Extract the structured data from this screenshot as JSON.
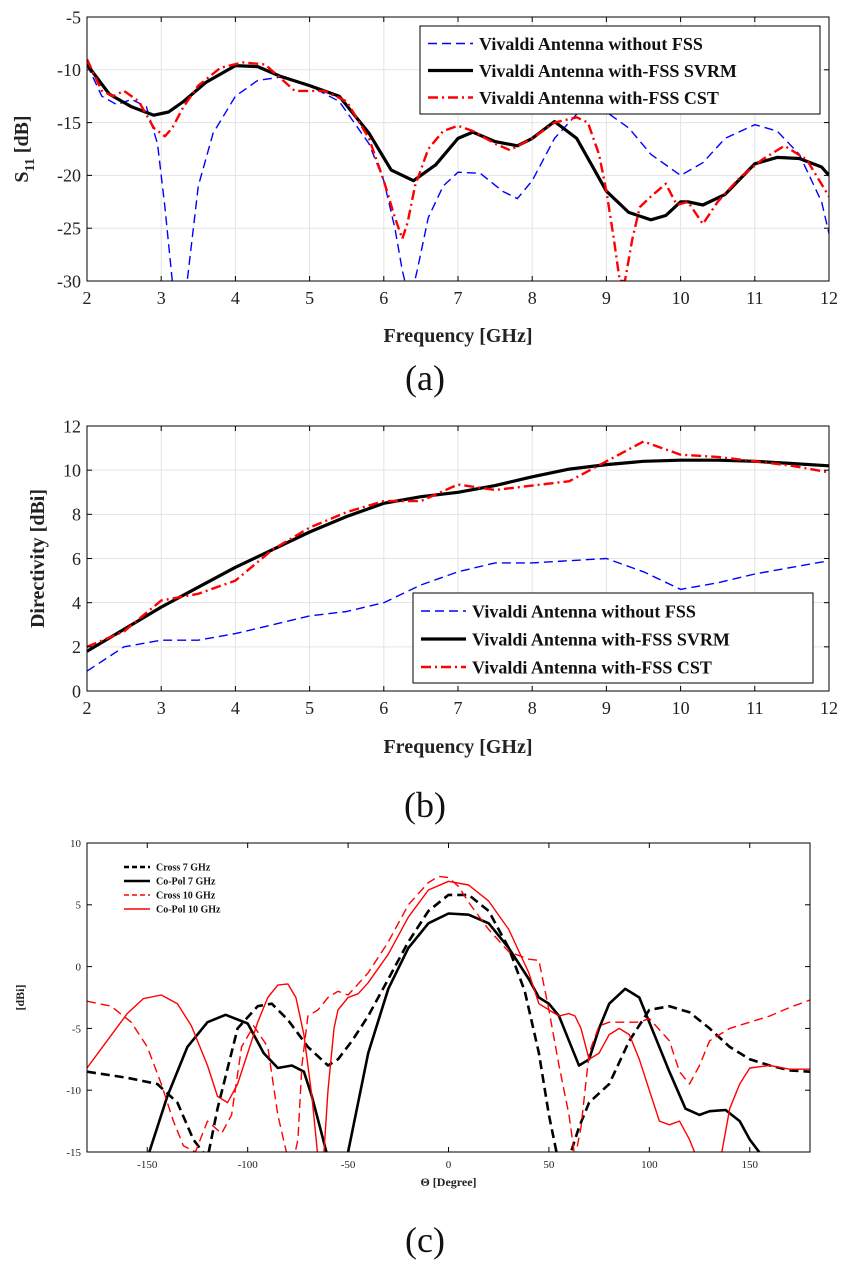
{
  "colors": {
    "blue": "#0000ff",
    "black": "#000000",
    "red": "#ff0000",
    "grid": "#e3e3e3"
  },
  "chart_data": [
    {
      "panel": "a",
      "type": "line",
      "caption": "(a)",
      "xlabel": "Frequency [GHz]",
      "ylabel_main": "S",
      "ylabel_sub": "11",
      "ylabel_unit": " [dB]",
      "xlim": [
        2,
        12
      ],
      "ylim": [
        -30,
        -5
      ],
      "xticks": [
        2,
        3,
        4,
        5,
        6,
        7,
        8,
        9,
        10,
        11,
        12
      ],
      "yticks": [
        -30,
        -25,
        -20,
        -15,
        -10,
        -5
      ],
      "grid": true,
      "legend_position": "top-right",
      "series": [
        {
          "name": "Vivaldi Antenna without FSS",
          "color": "#0000ff",
          "style": "dashed",
          "width": 1.4,
          "x": [
            2,
            2.2,
            2.4,
            2.6,
            2.8,
            2.95,
            3.05,
            3.15,
            3.25,
            3.35,
            3.5,
            3.7,
            4.0,
            4.3,
            4.6,
            5.0,
            5.4,
            5.8,
            6.0,
            6.15,
            6.25,
            6.35,
            6.45,
            6.6,
            6.8,
            7.0,
            7.3,
            7.6,
            7.8,
            8.0,
            8.3,
            8.6,
            9.0,
            9.3,
            9.6,
            10.0,
            10.3,
            10.6,
            11.0,
            11.3,
            11.6,
            11.9,
            12
          ],
          "y": [
            -9.5,
            -12.5,
            -13.3,
            -12.8,
            -13.5,
            -17,
            -23,
            -30,
            -32,
            -30,
            -21,
            -16,
            -12.5,
            -11.0,
            -10.7,
            -11.5,
            -13.0,
            -17.0,
            -20.5,
            -25,
            -29,
            -32,
            -29,
            -24,
            -21,
            -19.7,
            -19.8,
            -21.5,
            -22.2,
            -20.5,
            -16.5,
            -14.2,
            -14.0,
            -15.5,
            -18.0,
            -20.0,
            -18.8,
            -16.5,
            -15.2,
            -15.8,
            -18.0,
            -22.5,
            -25.5
          ]
        },
        {
          "name": "Vivaldi Antenna with-FSS SVRM",
          "color": "#000000",
          "style": "solid",
          "width": 3.2,
          "x": [
            2,
            2.3,
            2.6,
            2.9,
            3.1,
            3.3,
            3.6,
            4.0,
            4.3,
            4.6,
            5.0,
            5.4,
            5.8,
            6.1,
            6.4,
            6.7,
            7.0,
            7.2,
            7.5,
            7.8,
            8.0,
            8.3,
            8.6,
            9.0,
            9.3,
            9.6,
            9.8,
            10.0,
            10.1,
            10.3,
            10.6,
            11.0,
            11.3,
            11.6,
            11.9,
            12
          ],
          "y": [
            -9.5,
            -12.3,
            -13.5,
            -14.3,
            -14.0,
            -13.0,
            -11.2,
            -9.6,
            -9.7,
            -10.6,
            -11.5,
            -12.5,
            -16.0,
            -19.5,
            -20.5,
            -19.0,
            -16.5,
            -15.9,
            -16.8,
            -17.2,
            -16.5,
            -14.9,
            -16.5,
            -21.5,
            -23.5,
            -24.2,
            -23.8,
            -22.5,
            -22.5,
            -22.8,
            -21.8,
            -18.9,
            -18.3,
            -18.4,
            -19.2,
            -20.0
          ]
        },
        {
          "name": "Vivaldi Antenna with-FSS CST",
          "color": "#ff0000",
          "style": "dashdot",
          "width": 2.4,
          "x": [
            2,
            2.2,
            2.35,
            2.5,
            2.7,
            2.9,
            3.05,
            3.15,
            3.3,
            3.5,
            3.8,
            4.1,
            4.4,
            4.8,
            5.2,
            5.5,
            5.8,
            6.0,
            6.15,
            6.25,
            6.32,
            6.42,
            6.6,
            6.8,
            7.0,
            7.2,
            7.5,
            7.7,
            8.0,
            8.3,
            8.6,
            8.75,
            8.9,
            9.0,
            9.1,
            9.18,
            9.25,
            9.35,
            9.45,
            9.6,
            9.8,
            9.95,
            10.1,
            10.3,
            10.5,
            10.8,
            11.1,
            11.4,
            11.7,
            12
          ],
          "y": [
            -9.0,
            -12.0,
            -12.5,
            -12.0,
            -13.0,
            -15.5,
            -16.3,
            -15.5,
            -13.5,
            -11.5,
            -9.8,
            -9.3,
            -9.5,
            -12.0,
            -12.0,
            -13.0,
            -16.5,
            -20.5,
            -24.0,
            -26.0,
            -24.5,
            -21.0,
            -17.5,
            -15.8,
            -15.3,
            -15.8,
            -17.0,
            -17.6,
            -16.5,
            -15.0,
            -14.5,
            -15.0,
            -18.0,
            -21.5,
            -26.0,
            -30.0,
            -30.0,
            -26.0,
            -23.0,
            -22.0,
            -20.8,
            -22.8,
            -22.5,
            -24.6,
            -22.5,
            -20.2,
            -18.5,
            -17.2,
            -18.5,
            -22.0
          ]
        }
      ]
    },
    {
      "panel": "b",
      "type": "line",
      "caption": "(b)",
      "xlabel": "Frequency [GHz]",
      "ylabel": "Directivity [dBi]",
      "xlim": [
        2,
        12
      ],
      "ylim": [
        0,
        12
      ],
      "xticks": [
        2,
        3,
        4,
        5,
        6,
        7,
        8,
        9,
        10,
        11,
        12
      ],
      "yticks": [
        0,
        2,
        4,
        6,
        8,
        10,
        12
      ],
      "grid": true,
      "legend_position": "bottom-right",
      "series": [
        {
          "name": "Vivaldi Antenna without FSS",
          "color": "#0000ff",
          "style": "dashed",
          "width": 1.4,
          "x": [
            2,
            2.5,
            3,
            3.5,
            4,
            4.5,
            5,
            5.5,
            6,
            6.5,
            7,
            7.5,
            8,
            8.5,
            9,
            9.5,
            10,
            10.5,
            11,
            11.5,
            12
          ],
          "y": [
            0.9,
            2.0,
            2.3,
            2.3,
            2.6,
            3.0,
            3.4,
            3.6,
            4.0,
            4.8,
            5.4,
            5.8,
            5.8,
            5.9,
            6.0,
            5.4,
            4.6,
            4.9,
            5.3,
            5.6,
            5.9
          ]
        },
        {
          "name": "Vivaldi Antenna with-FSS SVRM",
          "color": "#000000",
          "style": "solid",
          "width": 3.2,
          "x": [
            2,
            2.5,
            3,
            3.5,
            4,
            4.5,
            5,
            5.5,
            6,
            6.5,
            7,
            7.5,
            8,
            8.5,
            9,
            9.5,
            10,
            10.5,
            11,
            11.5,
            12
          ],
          "y": [
            1.8,
            2.8,
            3.8,
            4.7,
            5.6,
            6.4,
            7.2,
            7.9,
            8.5,
            8.8,
            9.0,
            9.3,
            9.7,
            10.05,
            10.25,
            10.4,
            10.45,
            10.45,
            10.4,
            10.3,
            10.2
          ]
        },
        {
          "name": "Vivaldi Antenna with-FSS CST",
          "color": "#ff0000",
          "style": "dashdot",
          "width": 2.4,
          "x": [
            2,
            2.5,
            3,
            3.5,
            4,
            4.5,
            5,
            5.5,
            6,
            6.5,
            7,
            7.5,
            8,
            8.5,
            9,
            9.5,
            10,
            10.5,
            11,
            11.5,
            12
          ],
          "y": [
            2.0,
            2.7,
            4.1,
            4.4,
            5.0,
            6.4,
            7.4,
            8.1,
            8.6,
            8.6,
            9.35,
            9.1,
            9.3,
            9.5,
            10.4,
            11.3,
            10.7,
            10.6,
            10.4,
            10.2,
            9.9
          ]
        }
      ]
    },
    {
      "panel": "c",
      "type": "line",
      "caption": "(c)",
      "xlabel": "Θ [Degree]",
      "ylabel": "[dBi]",
      "xlim": [
        -180,
        180
      ],
      "ylim": [
        -15,
        10
      ],
      "xticks": [
        -150,
        -100,
        -50,
        0,
        50,
        100,
        150
      ],
      "yticks": [
        -15,
        -10,
        -5,
        0,
        5,
        10
      ],
      "grid": false,
      "legend_position": "top-left",
      "series": [
        {
          "name": "Cross 7 GHz",
          "color": "#000000",
          "style": "dashed",
          "width": 2.6,
          "x": [
            -180,
            -160,
            -145,
            -135,
            -127,
            -120,
            -115,
            -105,
            -95,
            -88,
            -80,
            -70,
            -60,
            -55,
            -48,
            -40,
            -30,
            -20,
            -10,
            0,
            10,
            20,
            30,
            38,
            45,
            50,
            55,
            60,
            65,
            70,
            80,
            90,
            100,
            110,
            120,
            130,
            140,
            150,
            160,
            170,
            180
          ],
          "y": [
            -8.5,
            -9.0,
            -9.5,
            -11.0,
            -14.0,
            -15.5,
            -11.5,
            -5.0,
            -3.2,
            -3.0,
            -4.3,
            -6.5,
            -8.0,
            -7.5,
            -6.0,
            -4.0,
            -1.0,
            2.0,
            4.5,
            5.8,
            5.8,
            4.5,
            1.5,
            -2.0,
            -7.0,
            -12.0,
            -16.0,
            -15.5,
            -13.0,
            -11.0,
            -9.5,
            -6.0,
            -3.5,
            -3.2,
            -3.7,
            -5.0,
            -6.5,
            -7.5,
            -8.0,
            -8.4,
            -8.5
          ]
        },
        {
          "name": "Co-Pol 7 GHz",
          "color": "#000000",
          "style": "solid",
          "width": 2.6,
          "x": [
            -150,
            -140,
            -130,
            -120,
            -111,
            -100,
            -92,
            -85,
            -78,
            -72,
            -68,
            -64,
            -60,
            -55,
            -50,
            -40,
            -30,
            -20,
            -10,
            0,
            10,
            20,
            30,
            40,
            45,
            50,
            55,
            60,
            65,
            70,
            75,
            80,
            88,
            95,
            100,
            110,
            118,
            125,
            130,
            138,
            145,
            150,
            157
          ],
          "y": [
            -15.5,
            -10.5,
            -6.5,
            -4.5,
            -3.9,
            -4.6,
            -7.0,
            -8.2,
            -8.0,
            -8.5,
            -10.5,
            -13.0,
            -15.5,
            -18.0,
            -15.0,
            -7.0,
            -1.8,
            1.5,
            3.5,
            4.3,
            4.2,
            3.5,
            1.5,
            -1.0,
            -2.5,
            -3.0,
            -4.0,
            -6.0,
            -8.0,
            -7.5,
            -5.0,
            -3.0,
            -1.8,
            -2.5,
            -4.5,
            -8.5,
            -11.5,
            -12.0,
            -11.7,
            -11.6,
            -12.5,
            -14.0,
            -15.5
          ]
        },
        {
          "name": "Cross 10 GHz",
          "color": "#ff0000",
          "style": "dashed",
          "width": 1.4,
          "x": [
            -180,
            -168,
            -158,
            -150,
            -143,
            -137,
            -132,
            -126,
            -120,
            -113,
            -108,
            -103,
            -97,
            -90,
            -85,
            -80,
            -77,
            -75,
            -73,
            -70,
            -65,
            -60,
            -55,
            -50,
            -40,
            -30,
            -20,
            -10,
            -5,
            0,
            5,
            10,
            20,
            30,
            40,
            45,
            50,
            55,
            60,
            63,
            66,
            70,
            75,
            80,
            88,
            95,
            100,
            110,
            115,
            120,
            125,
            130,
            140,
            150,
            160,
            170,
            180
          ],
          "y": [
            -2.8,
            -3.2,
            -4.5,
            -6.5,
            -9.5,
            -12.5,
            -14.5,
            -15.0,
            -12.5,
            -13.5,
            -12.0,
            -6.5,
            -4.8,
            -6.5,
            -12.0,
            -15.5,
            -15.5,
            -14.0,
            -8.0,
            -4.0,
            -3.5,
            -2.5,
            -2.0,
            -2.3,
            -0.5,
            2.0,
            5.0,
            6.8,
            7.3,
            7.2,
            6.5,
            5.2,
            3.0,
            1.2,
            0.6,
            0.5,
            -3.5,
            -8.0,
            -12.0,
            -15.5,
            -13.0,
            -7.0,
            -4.8,
            -4.5,
            -4.5,
            -4.5,
            -4.2,
            -6.0,
            -8.5,
            -9.5,
            -8.0,
            -6.0,
            -5.0,
            -4.5,
            -4.0,
            -3.3,
            -2.7
          ]
        },
        {
          "name": "Co-Pol 10 GHz",
          "color": "#ff0000",
          "style": "solid",
          "width": 1.4,
          "x": [
            -180,
            -170,
            -160,
            -152,
            -143,
            -135,
            -128,
            -120,
            -115,
            -110,
            -105,
            -100,
            -95,
            -90,
            -85,
            -80,
            -76,
            -72,
            -68,
            -65,
            -62,
            -60,
            -57,
            -55,
            -50,
            -45,
            -40,
            -30,
            -20,
            -10,
            0,
            10,
            20,
            30,
            40,
            45,
            50,
            55,
            60,
            63,
            66,
            70,
            75,
            80,
            85,
            90,
            95,
            100,
            105,
            110,
            115,
            120,
            125,
            130,
            135,
            140,
            145,
            150,
            160,
            170,
            180
          ],
          "y": [
            -8.2,
            -6.0,
            -3.8,
            -2.6,
            -2.3,
            -3.0,
            -4.8,
            -8.0,
            -10.5,
            -11.0,
            -9.5,
            -7.0,
            -4.5,
            -2.5,
            -1.5,
            -1.4,
            -2.5,
            -5.5,
            -10.5,
            -15.5,
            -15.0,
            -10.0,
            -5.0,
            -3.5,
            -2.5,
            -2.2,
            -1.3,
            1.0,
            4.0,
            6.2,
            6.9,
            6.6,
            5.3,
            3.0,
            -0.5,
            -3.0,
            -3.5,
            -4.0,
            -3.8,
            -4.0,
            -5.0,
            -7.5,
            -7.0,
            -5.5,
            -5.0,
            -5.5,
            -7.5,
            -10.0,
            -12.5,
            -12.8,
            -12.5,
            -14.0,
            -16.0,
            -20.0,
            -16.0,
            -11.5,
            -9.5,
            -8.2,
            -8.0,
            -8.3,
            -8.3
          ]
        }
      ]
    }
  ]
}
